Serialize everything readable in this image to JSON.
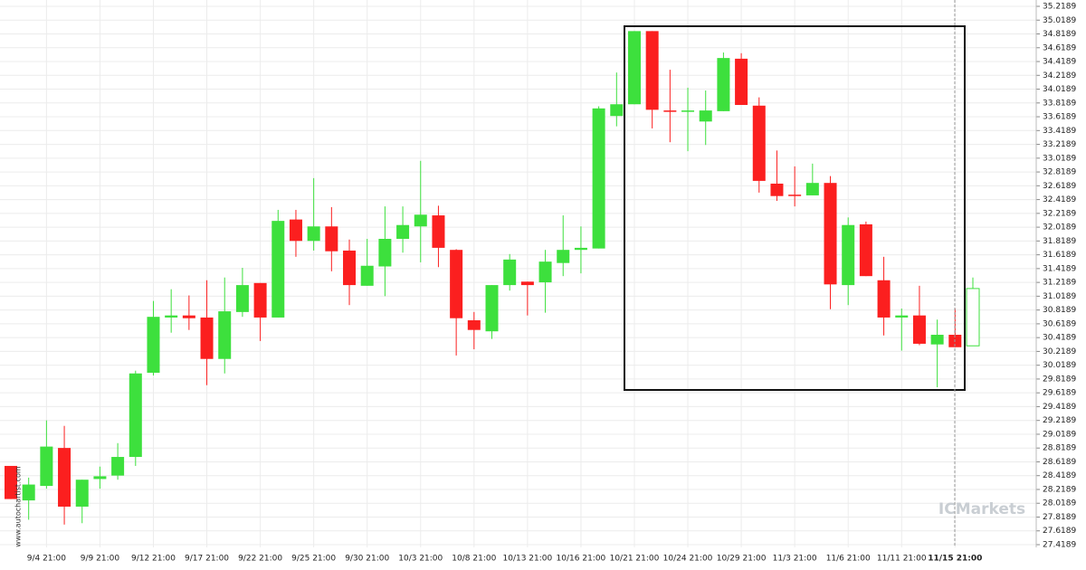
{
  "chart_data": {
    "type": "candlestick",
    "categories": [
      null,
      null,
      "9/4 21:00",
      null,
      null,
      "9/9 21:00",
      null,
      null,
      "9/12 21:00",
      null,
      null,
      "9/17 21:00",
      null,
      null,
      "9/22 21:00",
      null,
      null,
      "9/25 21:00",
      null,
      null,
      "9/30 21:00",
      null,
      null,
      "10/3 21:00",
      null,
      null,
      "10/8 21:00",
      null,
      null,
      "10/13 21:00",
      null,
      null,
      "10/16 21:00",
      null,
      null,
      "10/21 21:00",
      null,
      null,
      "10/24 21:00",
      null,
      null,
      "10/29 21:00",
      null,
      null,
      "11/3 21:00",
      null,
      null,
      "11/6 21:00",
      null,
      null,
      "11/11 21:00",
      null,
      null,
      "11/15 21:00",
      null
    ],
    "open": [
      28.56,
      28.06,
      28.27,
      28.82,
      27.97,
      28.37,
      28.42,
      28.69,
      29.91,
      30.71,
      30.74,
      30.71,
      30.11,
      30.79,
      31.21,
      30.71,
      32.13,
      31.82,
      32.03,
      31.68,
      31.17,
      31.45,
      31.85,
      32.03,
      32.19,
      31.69,
      30.67,
      30.51,
      31.18,
      31.23,
      31.22,
      31.5,
      31.69,
      31.71,
      33.63,
      33.8,
      34.86,
      33.71,
      33.69,
      33.55,
      33.7,
      34.46,
      33.78,
      32.65,
      32.49,
      32.48,
      32.66,
      31.18,
      32.06,
      31.25,
      30.71,
      30.74,
      30.32,
      30.46,
      30.3
    ],
    "high": [
      28.56,
      28.39,
      29.22,
      29.14,
      28.36,
      28.55,
      28.89,
      29.94,
      30.95,
      31.12,
      31.03,
      31.25,
      31.29,
      31.43,
      31.21,
      32.27,
      32.27,
      32.73,
      32.31,
      31.84,
      31.85,
      32.32,
      32.32,
      32.98,
      32.33,
      31.7,
      30.79,
      31.18,
      31.63,
      31.23,
      31.69,
      32.19,
      32.03,
      33.77,
      34.26,
      34.86,
      34.86,
      34.3,
      34.04,
      34.0,
      34.55,
      34.54,
      33.9,
      33.13,
      32.9,
      32.94,
      32.76,
      32.16,
      32.1,
      31.59,
      30.84,
      31.17,
      30.68,
      30.84,
      31.29
    ],
    "low": [
      28.08,
      27.78,
      28.23,
      27.71,
      27.73,
      28.23,
      28.36,
      28.56,
      29.87,
      30.49,
      30.53,
      29.73,
      29.9,
      30.72,
      30.37,
      30.71,
      31.59,
      31.68,
      31.38,
      30.89,
      31.17,
      31.02,
      31.65,
      31.51,
      31.44,
      30.16,
      30.25,
      30.4,
      31.1,
      30.74,
      30.78,
      31.31,
      31.35,
      31.71,
      33.48,
      33.8,
      33.45,
      33.25,
      33.12,
      33.21,
      33.7,
      33.79,
      32.52,
      32.4,
      32.32,
      32.48,
      30.83,
      30.89,
      31.31,
      30.45,
      30.23,
      30.31,
      29.7,
      30.28,
      30.3
    ],
    "close": [
      28.08,
      28.29,
      28.84,
      27.97,
      28.36,
      28.41,
      28.69,
      29.9,
      30.72,
      30.74,
      30.7,
      30.11,
      30.8,
      31.18,
      30.71,
      32.11,
      31.82,
      32.03,
      31.67,
      31.18,
      31.46,
      31.85,
      32.05,
      32.2,
      31.72,
      30.7,
      30.53,
      31.18,
      31.55,
      31.18,
      31.52,
      31.69,
      31.72,
      33.74,
      33.8,
      34.86,
      33.72,
      33.69,
      33.71,
      33.71,
      34.47,
      33.79,
      32.69,
      32.47,
      32.47,
      32.66,
      31.19,
      32.05,
      31.31,
      30.71,
      30.74,
      30.33,
      30.46,
      30.28,
      31.13
    ],
    "up_color": "#3de03d",
    "down_color": "#fb1f1f",
    "ylim": [
      27.4189,
      35.2189
    ],
    "yticks": [
      35.2189,
      35.0189,
      34.8189,
      34.6189,
      34.4189,
      34.2189,
      34.0189,
      33.8189,
      33.6189,
      33.4189,
      33.2189,
      33.0189,
      32.8189,
      32.6189,
      32.4189,
      32.2189,
      32.0189,
      31.8189,
      31.6189,
      31.4189,
      31.2189,
      31.0189,
      30.8189,
      30.6189,
      30.4189,
      30.2189,
      30.0189,
      29.8189,
      29.6189,
      29.4189,
      29.2189,
      29.0189,
      28.8189,
      28.6189,
      28.4189,
      28.2189,
      28.0189,
      27.8189,
      27.6189,
      27.4189
    ],
    "grid": true,
    "watermark": "ICMarkets",
    "source": "www.autochartist.com"
  }
}
